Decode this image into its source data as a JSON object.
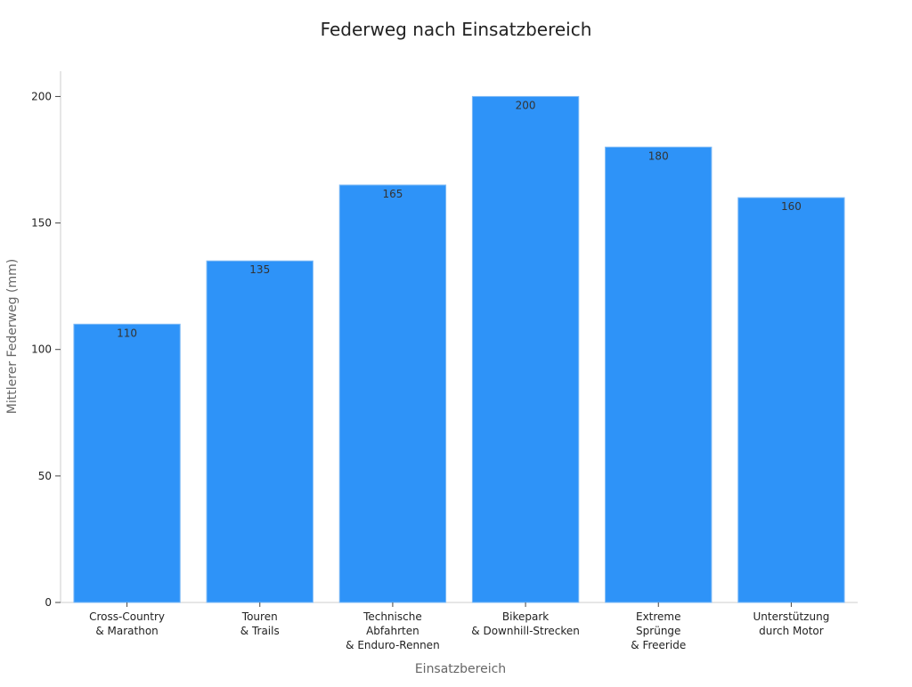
{
  "chart_data": {
    "type": "bar",
    "title": "Federweg nach Einsatzbereich",
    "x_label": "Einsatzbereich",
    "y_label": "Mittlerer Federweg (mm)",
    "categories": [
      "Cross-Country\n& Marathon",
      "Touren\n& Trails",
      "Technische\nAbfahrten\n& Enduro-Rennen",
      "Bikepark\n& Downhill-Strecken",
      "Extreme\nSprünge\n& Freeride",
      "Unterstützung\ndurch Motor"
    ],
    "values": [
      110,
      135,
      165,
      200,
      180,
      160
    ],
    "color": "#2e93f8",
    "ylim": [
      0,
      210
    ],
    "yticks": [
      0,
      50,
      100,
      150,
      200
    ],
    "grid": false,
    "data_labels": true
  }
}
